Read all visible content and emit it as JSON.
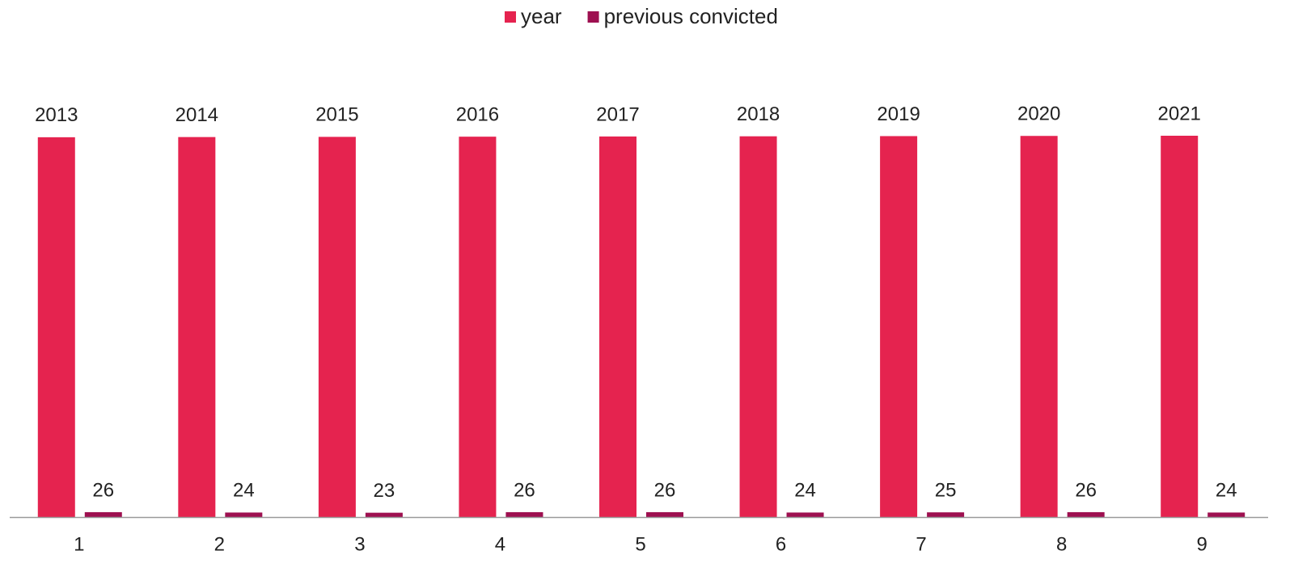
{
  "chart_data": {
    "type": "bar",
    "categories": [
      "1",
      "2",
      "3",
      "4",
      "5",
      "6",
      "7",
      "8",
      "9"
    ],
    "series": [
      {
        "name": "year",
        "color": "#e5234f",
        "values": [
          2013,
          2014,
          2015,
          2016,
          2017,
          2018,
          2019,
          2020,
          2021
        ]
      },
      {
        "name": "previous convicted",
        "color": "#9e1050",
        "values": [
          26,
          24,
          23,
          26,
          26,
          24,
          25,
          26,
          24
        ]
      }
    ],
    "legend": "top"
  }
}
